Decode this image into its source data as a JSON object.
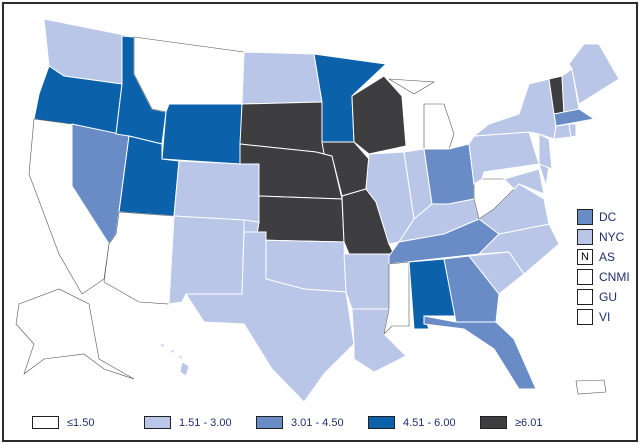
{
  "colors": {
    "c0": "#ffffff",
    "c1": "#b9c6e8",
    "c2": "#6a8cc6",
    "c3": "#0b62aa",
    "c4": "#3e3e40"
  },
  "legend": [
    {
      "label": "≤1.50",
      "cls": "c0"
    },
    {
      "label": "1.51 - 3.00",
      "cls": "c1"
    },
    {
      "label": "3.01 - 4.50",
      "cls": "c2"
    },
    {
      "label": "4.51 - 6.00",
      "cls": "c3"
    },
    {
      "label": "≥6.01",
      "cls": "c4"
    }
  ],
  "side_legend": [
    {
      "label": "DC",
      "cls": "c2",
      "mark": ""
    },
    {
      "label": "NYC",
      "cls": "c1",
      "mark": ""
    },
    {
      "label": "AS",
      "cls": "c0",
      "mark": "N"
    },
    {
      "label": "CNMI",
      "cls": "c0",
      "mark": ""
    },
    {
      "label": "GU",
      "cls": "c0",
      "mark": ""
    },
    {
      "label": "VI",
      "cls": "c0",
      "mark": ""
    }
  ],
  "states": {
    "WA": "c1",
    "OR": "c3",
    "CA": "c0",
    "NV": "c2",
    "ID": "c3",
    "MT": "c0",
    "WY": "c3",
    "UT": "c3",
    "AZ": "c0",
    "CO": "c1",
    "NM": "c1",
    "ND": "c1",
    "SD": "c4",
    "NE": "c4",
    "KS": "c4",
    "OK": "c1",
    "TX": "c1",
    "MN": "c3",
    "IA": "c4",
    "MO": "c4",
    "AR": "c1",
    "LA": "c1",
    "WI": "c4",
    "IL": "c1",
    "MI": "c0",
    "IN": "c1",
    "OH": "c2",
    "KY": "c1",
    "TN": "c2",
    "MS": "c0",
    "AL": "c3",
    "GA": "c2",
    "FL": "c2",
    "SC": "c1",
    "NC": "c1",
    "VA": "c1",
    "WV": "c0",
    "MD": "c1",
    "DE": "c1",
    "PA": "c1",
    "NJ": "c1",
    "NY": "c1",
    "VT": "c4",
    "NH": "c1",
    "ME": "c1",
    "MA": "c2",
    "CT": "c1",
    "RI": "c1",
    "AK": "c0",
    "HI": "c1",
    "PR": "c0"
  }
}
